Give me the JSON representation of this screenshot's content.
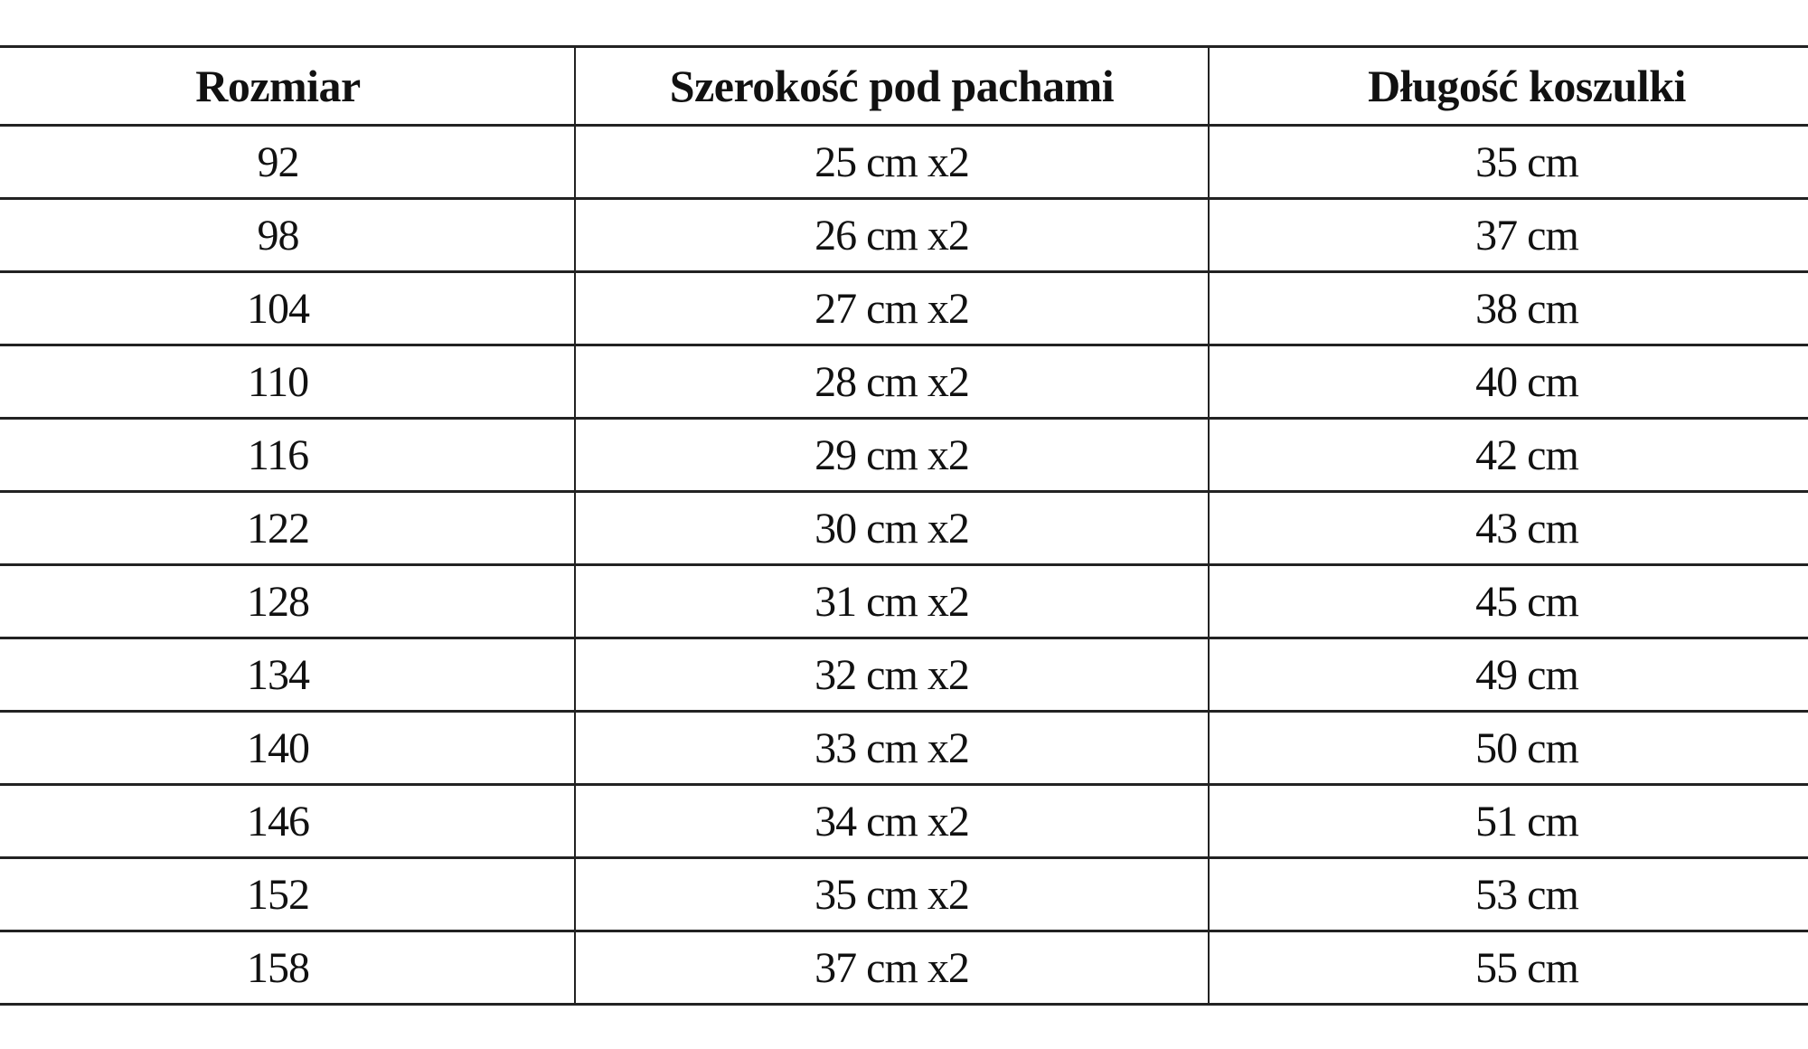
{
  "table": {
    "headers": [
      "Rozmiar",
      "Szerokość pod pachami",
      "Długość koszulki"
    ],
    "rows": [
      [
        "92",
        "25 cm x2",
        "35 cm"
      ],
      [
        "98",
        "26 cm x2",
        "37 cm"
      ],
      [
        "104",
        "27 cm x2",
        "38 cm"
      ],
      [
        "110",
        "28 cm x2",
        "40 cm"
      ],
      [
        "116",
        "29 cm x2",
        "42 cm"
      ],
      [
        "122",
        "30 cm x2",
        "43 cm"
      ],
      [
        "128",
        "31 cm x2",
        "45 cm"
      ],
      [
        "134",
        "32 cm x2",
        "49 cm"
      ],
      [
        "140",
        "33 cm x2",
        "50 cm"
      ],
      [
        "146",
        "34 cm x2",
        "51 cm"
      ],
      [
        "152",
        "35 cm x2",
        "53 cm"
      ],
      [
        "158",
        "37 cm x2",
        "55 cm"
      ]
    ]
  }
}
